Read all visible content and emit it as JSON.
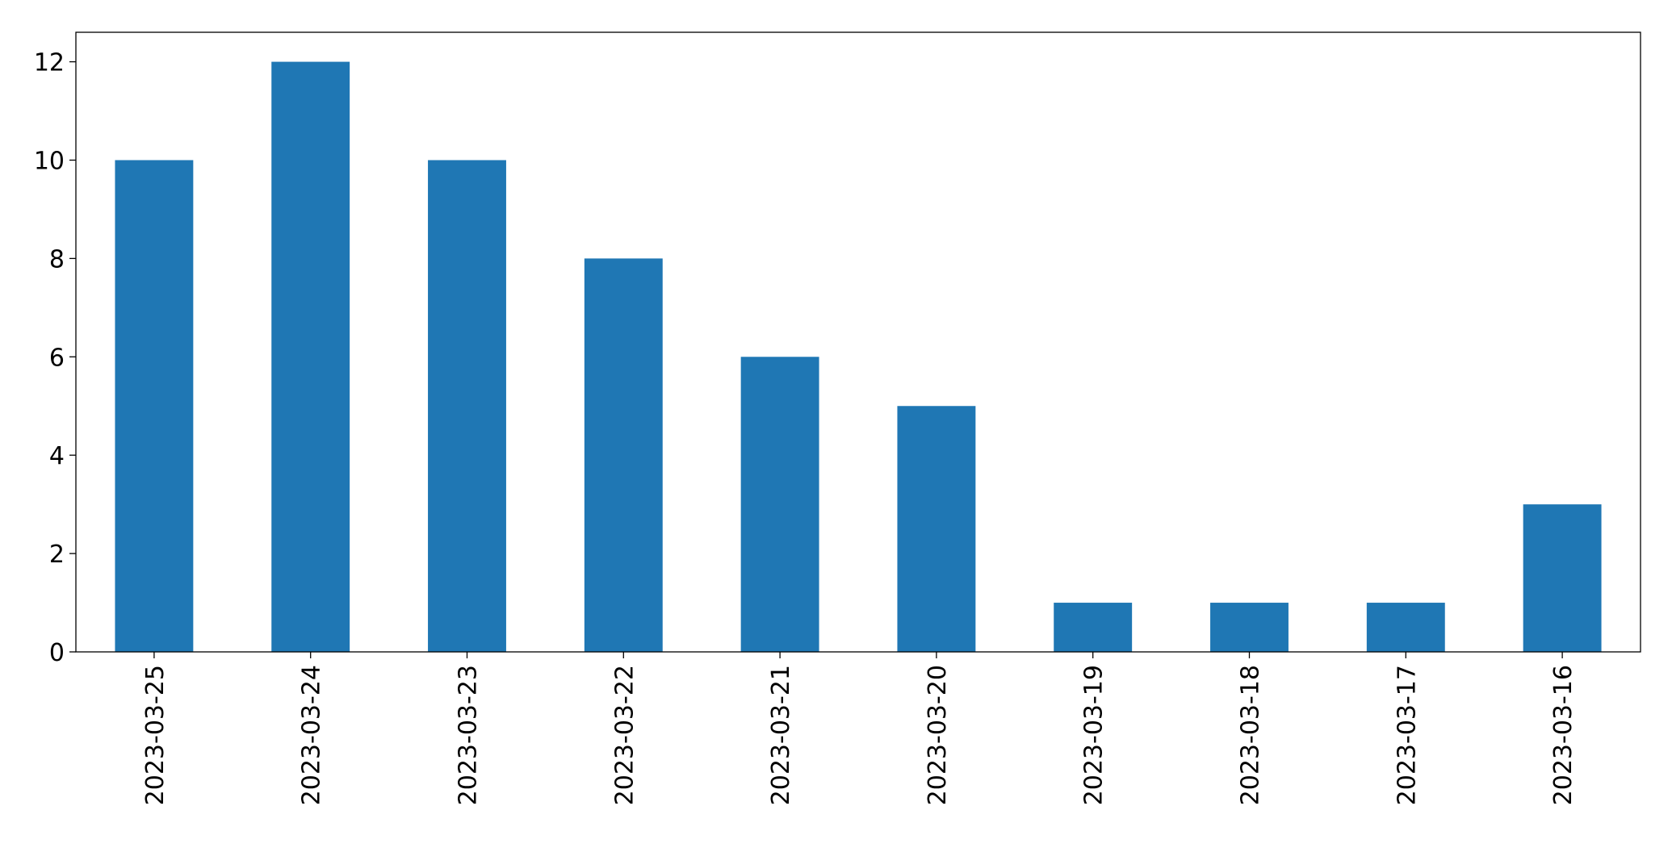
{
  "chart_data": {
    "type": "bar",
    "categories": [
      "2023-03-25",
      "2023-03-24",
      "2023-03-23",
      "2023-03-22",
      "2023-03-21",
      "2023-03-20",
      "2023-03-19",
      "2023-03-18",
      "2023-03-17",
      "2023-03-16"
    ],
    "values": [
      10,
      12,
      10,
      8,
      6,
      5,
      1,
      1,
      1,
      3
    ],
    "color": "#1f77b4",
    "ylim": [
      0,
      12.6
    ],
    "yticks": [
      0,
      2,
      4,
      6,
      8,
      10,
      12
    ],
    "grid": false
  }
}
